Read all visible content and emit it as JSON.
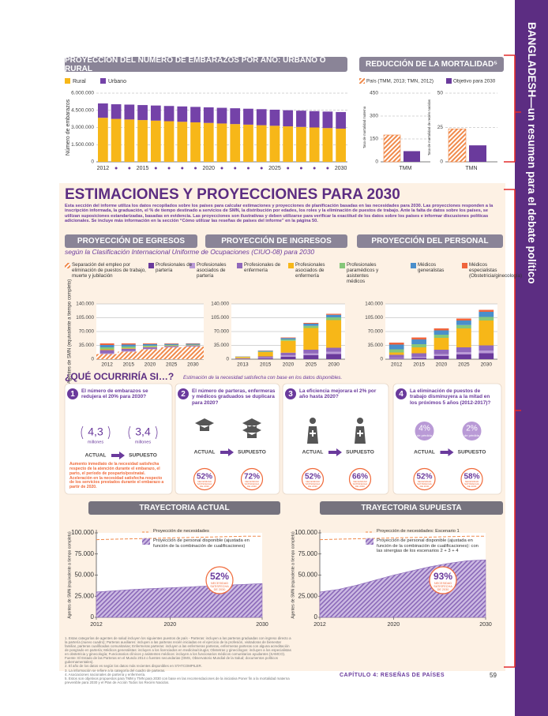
{
  "sidebar_title": "BANGLADESH—un resumen para el debate político",
  "pregnancy_chart": {
    "type": "bar",
    "title": "PROYECCIÓN DEL NÚMERO DE EMBARAZOS POR AÑO: URBANO O RURAL",
    "ylabel": "Número de embarazos",
    "categories": [
      "2012",
      null,
      null,
      "2015",
      null,
      null,
      null,
      null,
      "2020",
      null,
      null,
      null,
      null,
      "2025",
      null,
      null,
      null,
      null,
      "2030"
    ],
    "series": [
      {
        "name": "Rural",
        "color": "#f7b718",
        "values": [
          3850000,
          3750000,
          3700000,
          3650000,
          3600000,
          3550000,
          3500000,
          3450000,
          3400000,
          3350000,
          3300000,
          3250000,
          3200000,
          3150000,
          3100000,
          3050000,
          3000000,
          2950000,
          2900000
        ]
      },
      {
        "name": "Urbano",
        "color": "#7442a8",
        "values": [
          1250000,
          1280000,
          1300000,
          1310000,
          1320000,
          1330000,
          1340000,
          1350000,
          1360000,
          1370000,
          1380000,
          1390000,
          1400000,
          1405000,
          1410000,
          1420000,
          1430000,
          1440000,
          1450000
        ]
      }
    ],
    "stacked": true,
    "ylim": [
      0,
      6000000
    ],
    "yticks": [
      0,
      {
        "value": 1500000,
        "label": "1.500.000"
      },
      {
        "value": 3000000,
        "label": "3.000.000"
      },
      {
        "value": 4500000,
        "label": "4.500.000"
      },
      {
        "value": 6000000,
        "label": "6.000.000"
      }
    ],
    "grid": true
  },
  "mortality_chart": {
    "type": "bar",
    "title": "REDUCCIÓN DE LA MORTALIDAD⁵",
    "series": [
      {
        "name": "País (TMM, 2013; TMN, 2012)",
        "color": "#f08a4b",
        "hatched": true
      },
      {
        "name": "Objetivo para 2030",
        "color": "#6a3a9c",
        "hatched": false
      }
    ],
    "panels": [
      {
        "category": "TMM",
        "ylabel": "Tasa de mortalidad materna",
        "values": [
          176,
          70
        ],
        "ylim": [
          0,
          450
        ],
        "yticks": [
          0,
          150,
          300,
          450
        ]
      },
      {
        "category": "TMN",
        "ylabel": "Tasa de mortalidad de recién nacidos",
        "values": [
          24,
          12
        ],
        "ylim": [
          0,
          50
        ],
        "yticks": [
          0,
          25,
          50
        ]
      }
    ],
    "grid": true
  },
  "projections": {
    "title": "ESTIMACIONES Y PROYECCIONES PARA 2030",
    "intro": "Esta sección del informe utiliza los datos recopilados sobre los países para calcular estimaciones y proyecciones de planificación basadas en las necesidades para 2030. Las proyecciones responden a la inscripción informada, la graduación, el % de tiempo destinado a servicios de SMN, la distribución por edades, los roles y la eliminación de puestos de trabajo. Ante la falta de datos sobre los países, se utilizan suposiciones estandarizadas, basadas en evidencia. Las proyecciones son ilustrativas y deben utilizarse para verificar la exactitud de los datos sobre los países e informar discusiones políticas adicionales. Se incluye más información en la sección “Cómo utilizar las reseñas de países del informe” en la página 50.",
    "subtitle": "según la Clasificación Internacional Uniforme de Ocupaciones (CIUO-08) para 2030",
    "legend": [
      {
        "name": "Separación del empleo por eliminación de puestos de trabajo, muerte y jubilación",
        "color": "#f08a4b",
        "hatched": true
      },
      {
        "name": "Profesionales de partería",
        "color": "#6a3a9c",
        "hatched": false
      },
      {
        "name": "Profesionales asociados de partería",
        "color": "#b99ad6",
        "hatched": false
      },
      {
        "name": "Profesionales de enfermería",
        "color": "#9068bb",
        "hatched": false
      },
      {
        "name": "Profesionales asociados de enfermería",
        "color": "#f7b718",
        "hatched": false
      },
      {
        "name": "Profesionales paramédicos y asistentes médicos",
        "color": "#86c77a",
        "hatched": false
      },
      {
        "name": "Médicos generalistas",
        "color": "#4a8fcb",
        "hatched": false
      },
      {
        "name": "Médicos especialistas (Obstetricia/ginecología)",
        "color": "#f0643c",
        "hatched": false
      }
    ],
    "charts": [
      {
        "type": "bar",
        "title": "PROYECCIÓN DE EGRESOS",
        "ylabel": "Agentes de SMN (equivalente a tiempo completo)",
        "categories": [
          "2012",
          "2015",
          "2020",
          "2025",
          "2030"
        ],
        "ylim": [
          0,
          140000
        ],
        "yticks": [
          0,
          {
            "value": 35000,
            "label": "35.000"
          },
          {
            "value": 70000,
            "label": "70.000"
          },
          {
            "value": 105000,
            "label": "105.000"
          },
          {
            "value": 140000,
            "label": "140.000"
          }
        ],
        "series_values": [
          [
            13000,
            19000,
            25000,
            30000,
            32000
          ],
          [
            500,
            400,
            300,
            200,
            150
          ],
          [
            1500,
            1200,
            900,
            600,
            500
          ],
          [
            8000,
            6000,
            4000,
            2500,
            2000
          ],
          [
            2000,
            1500,
            1200,
            800,
            650
          ],
          [
            5000,
            4000,
            3000,
            2000,
            1600
          ],
          [
            6000,
            5000,
            3800,
            2600,
            2100
          ],
          [
            4000,
            2900,
            1800,
            1300,
            1000
          ]
        ]
      },
      {
        "type": "bar",
        "title": "PROYECCIÓN DE INGRESOS",
        "categories": [
          "2013",
          "2015",
          "2020",
          "2025",
          "2030"
        ],
        "ylim": [
          0,
          140000
        ],
        "yticks": [
          0,
          {
            "value": 35000,
            "label": "35.000"
          },
          {
            "value": 70000,
            "label": "70.000"
          },
          {
            "value": 105000,
            "label": "105.000"
          },
          {
            "value": 140000,
            "label": "140.000"
          }
        ],
        "series_values": [
          [
            0,
            0,
            0,
            0,
            0
          ],
          [
            500,
            2000,
            6000,
            10000,
            13000
          ],
          [
            500,
            1500,
            3500,
            5000,
            6000
          ],
          [
            1500,
            3500,
            7000,
            9000,
            10000
          ],
          [
            3000,
            11000,
            30000,
            55000,
            70000
          ],
          [
            500,
            1500,
            3500,
            5500,
            7000
          ],
          [
            700,
            1800,
            3500,
            5500,
            6500
          ],
          [
            300,
            700,
            1500,
            2000,
            2500
          ]
        ]
      },
      {
        "type": "bar",
        "title": "PROYECCIÓN DEL PERSONAL",
        "categories": [
          "2012",
          "2015",
          "2020",
          "2025",
          "2030"
        ],
        "ylim": [
          0,
          140000
        ],
        "yticks": [
          0,
          {
            "value": 35000,
            "label": "35.000"
          },
          {
            "value": 70000,
            "label": "70.000"
          },
          {
            "value": 105000,
            "label": "105.000"
          },
          {
            "value": 140000,
            "label": "140.000"
          }
        ],
        "series_values": [
          [
            0,
            0,
            0,
            0,
            0
          ],
          [
            1000,
            3000,
            8000,
            12000,
            15000
          ],
          [
            2000,
            3000,
            5000,
            6000,
            7000
          ],
          [
            8000,
            9000,
            11000,
            12000,
            13000
          ],
          [
            6000,
            15000,
            30000,
            48000,
            63000
          ],
          [
            8000,
            8000,
            8000,
            8500,
            9000
          ],
          [
            12000,
            12000,
            11000,
            11500,
            13000
          ],
          [
            5000,
            5000,
            5000,
            5000,
            5000
          ]
        ]
      }
    ]
  },
  "scenarios": {
    "title": "¿QUÉ OCURRIRÍA SI…?",
    "subtitle": "Estimación de la necesidad satisfecha con base en los datos disponibles.",
    "actual_label": "ACTUAL",
    "supuesto_label": "SUPUESTO",
    "items": [
      {
        "number": 1,
        "question": "El número de embarazos se redujera el 20% para 2030?",
        "actual": "4,3",
        "supuesto": "3,4",
        "unit": "millones",
        "note": "Aumento inmediato de la necesidad satisfecha respecto de la atención durante el embarazo, el parto, el período de posparto/postnatal. Aceleración en la necesidad satisfecha respecto de los servicios prestados durante el embarazo a partir de 2020."
      },
      {
        "number": 2,
        "question": "El número de parteras, enfermeras y médicos graduados se duplicara para 2020?",
        "met_need": [
          "52%",
          "72%"
        ]
      },
      {
        "number": 3,
        "question": "La eficiencia mejorara el 2% por año hasta 2020?",
        "met_need": [
          "52%",
          "66%"
        ]
      },
      {
        "number": 4,
        "question": "La eliminación de puestos de trabajo disminuyera a la mitad en los próximos 5 años (2012-2017)?",
        "actual": "4%",
        "supuesto": "2%",
        "unit": "de pérdida",
        "met_need": [
          "52%",
          "58%"
        ]
      }
    ]
  },
  "met_need_label": "NECESIDAD SATISFECHA DE 2030",
  "trajectories": [
    {
      "type": "line",
      "title": "TRAYECTORIA ACTUAL",
      "ylabel": "Agentes de SMN (equivalente a tiempo completo)",
      "x": [
        2012,
        2014,
        2016,
        2018,
        2020,
        2022,
        2024,
        2026,
        2028,
        2030
      ],
      "xlim": [
        2012,
        2030
      ],
      "xticks": [
        2012,
        2020,
        2030
      ],
      "ylim": [
        0,
        100000
      ],
      "yticks": [
        0,
        {
          "value": 25000,
          "label": "25.000"
        },
        {
          "value": 50000,
          "label": "50.000"
        },
        {
          "value": 75000,
          "label": "75.000"
        },
        {
          "value": 100000,
          "label": "100.000"
        }
      ],
      "series": [
        {
          "name": "Proyección de necesidades",
          "color": "#f08a4b",
          "style": "dashed",
          "values": [
            92000,
            92500,
            93000,
            93500,
            94000,
            94500,
            95000,
            95500,
            96000,
            96000
          ]
        },
        {
          "name": "Proyección de personal disponible (ajustada en función de la combinación de cualificaciones)",
          "color": "#8a68b8",
          "style": "area",
          "values": [
            30000,
            31500,
            33000,
            34000,
            35000,
            36000,
            37000,
            38000,
            39000,
            40000
          ]
        }
      ],
      "met_need": "52%"
    },
    {
      "type": "line",
      "title": "TRAYECTORIA SUPUESTA",
      "ylabel": "Agentes de SMN (equivalente a tiempo completo)",
      "x": [
        2012,
        2014,
        2016,
        2018,
        2020,
        2022,
        2024,
        2026,
        2028,
        2030
      ],
      "xlim": [
        2012,
        2030
      ],
      "xticks": [
        2012,
        2020,
        2030
      ],
      "ylim": [
        0,
        100000
      ],
      "yticks": [
        0,
        {
          "value": 25000,
          "label": "25.000"
        },
        {
          "value": 50000,
          "label": "50.000"
        },
        {
          "value": 75000,
          "label": "75.000"
        },
        {
          "value": 100000,
          "label": "100.000"
        }
      ],
      "series": [
        {
          "name": "Proyección de necesidades: Escenario 1",
          "color": "#f08a4b",
          "style": "dashed",
          "values": [
            92000,
            92500,
            93000,
            93500,
            94000,
            94500,
            95000,
            95500,
            96000,
            96000
          ]
        },
        {
          "name": "Proyección de personal disponible (ajustada en función de la combinación de cualificaciones): con las sinergias de los escenarios 2 + 3 + 4",
          "color": "#8a68b8",
          "style": "area",
          "values": [
            30000,
            33000,
            38000,
            44000,
            50000,
            55000,
            60000,
            64000,
            67000,
            68000
          ]
        }
      ],
      "met_need": "93%"
    }
  ],
  "footnotes": [
    "1.  Estas categorías de agentes de salud incluyen los siguientes puestos de país - Parteras: incluyen a las parteras graduadas con ingreso directo a la partería (nuevo cuadro); Parteras auxiliares: incluyen a las parteras recién iniciadas en el ejercicio de la profesión, visitadoras de bienestar familiar, parteras cualificadas comunitarias; Enfermeras parteras: incluyen a las enfermeras parteras, enfermeras parteras con alguna acreditación de posgrado en partería; Médicos generalistas: incluyen a los licenciados en medicina/cirugía; Obstetras y ginecólogos: incluyen a los especialistas en obstetricia y ginecología; Funcionarios clínicos y asistentes médicos: incluyen a los funcionarios médicos comunitarios ayudantes (SAMCO). Fuente: El Estado de las Parteras en el Mundo 2014 o fuentes secundarias (OMS, Observatorio Mundial de la Salud; documentos políticos gubernamentales).",
    "2.  El año de los datos es según los datos más recientes disponibles en STATCOMPILER.",
    "3.  La información se refiere a la categoría del cuadro de parteras.",
    "4.  Asociaciones nacionales de partería y enfermería.",
    "5.  Estos son objetivos propuestos para TMM y TMN para 2030 con base en las recomendaciones de la iniciativa Poner fin a la mortalidad materna prevenible para 2030 y el Plan de Acción Todos los Recién Nacidos."
  ],
  "footer": {
    "chapter": "CAPÍTULO 4: RESEÑAS DE PAÍSES",
    "page": "59"
  }
}
